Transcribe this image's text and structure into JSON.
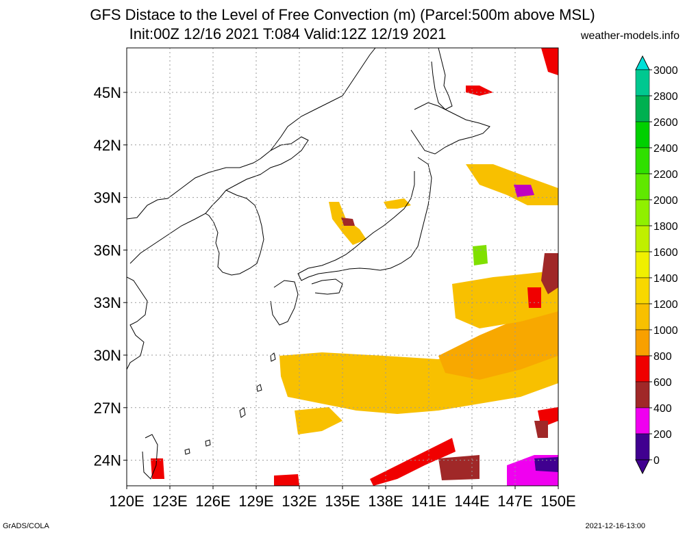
{
  "title_line1": "GFS Distace to the Level of Free Convection (m) (Parcel:500m above MSL)",
  "title_line2": "Init:00Z 12/16 2021 T:084 Valid:12Z 12/19 2021",
  "site": "weather-models.info",
  "lat_labels": [
    "45N",
    "42N",
    "39N",
    "36N",
    "33N",
    "30N",
    "27N",
    "24N"
  ],
  "lon_labels": [
    "120E",
    "123E",
    "126E",
    "129E",
    "132E",
    "135E",
    "138E",
    "141E",
    "144E",
    "147E",
    "150E"
  ],
  "colorbar": {
    "labels": [
      "3000",
      "2800",
      "2600",
      "2400",
      "2200",
      "2000",
      "1800",
      "1600",
      "1400",
      "1200",
      "1000",
      "800",
      "600",
      "400",
      "200",
      "0"
    ],
    "colors": [
      "#00e0d8",
      "#00c890",
      "#00b050",
      "#00d000",
      "#30e000",
      "#60e800",
      "#90f000",
      "#c0f000",
      "#f0f000",
      "#f8d800",
      "#f8c000",
      "#f8a000",
      "#f00000",
      "#a02828",
      "#f000f0",
      "#400090"
    ]
  },
  "footer_left": "GrADS/COLA",
  "footer_right": "2021-12-16-13:00"
}
